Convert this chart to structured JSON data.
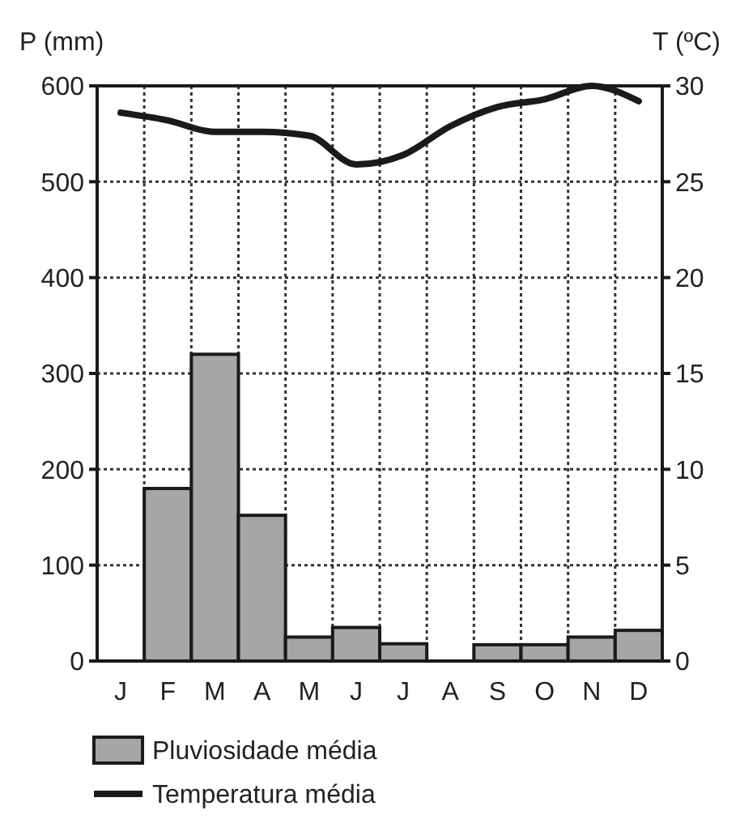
{
  "chart_data": {
    "type": "bar",
    "ylabel": "P (mm)",
    "y2label": "T (ºC)",
    "categories": [
      "J",
      "F",
      "M",
      "A",
      "M",
      "J",
      "J",
      "A",
      "S",
      "O",
      "N",
      "D"
    ],
    "series": [
      {
        "name": "Pluviosidade média",
        "color": "#a6a6a6",
        "values": [
          0,
          180,
          320,
          152,
          25,
          35,
          18,
          0,
          17,
          17,
          25,
          32
        ]
      },
      {
        "name": "Temperatura média",
        "type": "line",
        "axis": "y2",
        "color": "#1a1a1a",
        "values": [
          28.6,
          28.2,
          27.6,
          27.6,
          27.4,
          25.9,
          26.4,
          27.9,
          28.9,
          29.3,
          30,
          29.2
        ]
      }
    ],
    "ylim": [
      0,
      600
    ],
    "yticks": [
      0,
      100,
      200,
      300,
      400,
      500,
      600
    ],
    "y2lim": [
      0,
      30
    ],
    "y2ticks": [
      0,
      5,
      10,
      15,
      20,
      25,
      30
    ],
    "grid": true,
    "legend": "bottom",
    "marker": "none",
    "line_style": "solid"
  }
}
